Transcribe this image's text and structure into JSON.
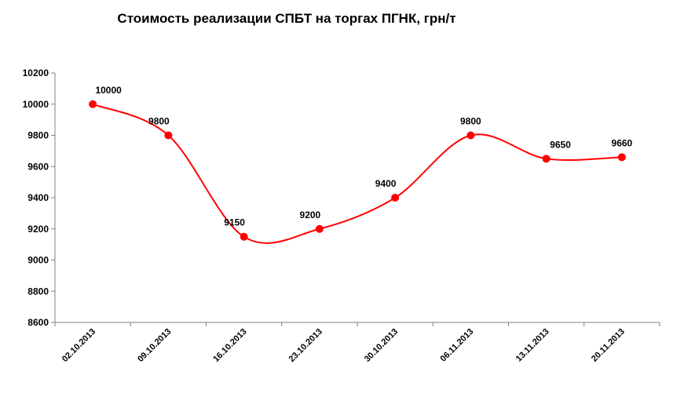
{
  "chart_data": {
    "type": "line",
    "title": "Стоимость реализации СПБТ на торгах ПГНК, грн/т",
    "xlabel": "",
    "ylabel": "",
    "categories": [
      "02.10.2013",
      "09.10.2013",
      "16.10.2013",
      "23.10.2013",
      "30.10.2013",
      "06.11.2013",
      "13.11.2013",
      "20.11.2013"
    ],
    "series": [
      {
        "values": [
          10000,
          9800,
          9150,
          9200,
          9400,
          9800,
          9650,
          9660
        ],
        "color": "#ff0000",
        "smooth": true,
        "markers": true
      }
    ],
    "data_labels": [
      "10000",
      "9800",
      "9150",
      "9200",
      "9400",
      "9800",
      "9650",
      "9660"
    ],
    "ylim": [
      8600,
      10200
    ],
    "yticks": [
      "8600",
      "8800",
      "9000",
      "9200",
      "9400",
      "9600",
      "9800",
      "10000",
      "10200"
    ],
    "grid": false,
    "legend": "none"
  }
}
